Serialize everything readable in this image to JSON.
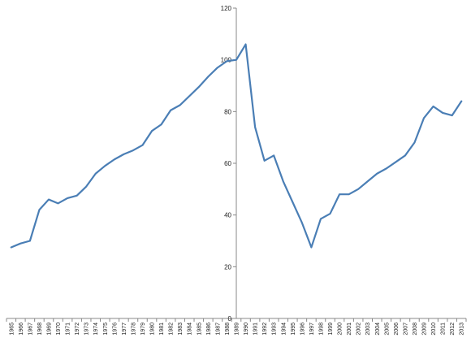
{
  "chart_data": {
    "type": "line",
    "title": "",
    "xlabel": "",
    "ylabel": "",
    "ylim": [
      0,
      120
    ],
    "yticks": [
      "0",
      "20",
      "40",
      "60",
      "80",
      "100",
      "120"
    ],
    "grid": false,
    "legend": "none",
    "line_color": "#4a7eb5",
    "categories": [
      "1965",
      "1966",
      "1967",
      "1968",
      "1969",
      "1970",
      "1971",
      "1972",
      "1973",
      "1974",
      "1975",
      "1976",
      "1977",
      "1978",
      "1979",
      "1980",
      "1981",
      "1982",
      "1983",
      "1984",
      "1985",
      "1986",
      "1987",
      "1988",
      "1989",
      "1990",
      "1991",
      "1992",
      "1993",
      "1994",
      "1995",
      "1996",
      "1997",
      "1998",
      "1999",
      "2000",
      "2001",
      "2002",
      "2003",
      "2004",
      "2005",
      "2006",
      "2007",
      "2008",
      "2009",
      "2010",
      "2011",
      "2012",
      "2013"
    ],
    "series": [
      {
        "values": [
          27.5,
          29,
          30,
          42,
          46,
          44.5,
          46.5,
          47.5,
          51,
          56,
          59,
          61.5,
          63.5,
          65,
          67,
          72.5,
          75,
          80.5,
          82.5,
          86,
          89.5,
          93.5,
          97,
          99.5,
          100,
          106,
          74,
          61,
          63,
          53,
          45,
          37,
          27.5,
          38.5,
          40.5,
          48,
          48,
          50,
          53,
          56,
          58,
          60.5,
          63,
          68,
          77.5,
          82,
          79.5,
          78.5,
          84
        ]
      }
    ]
  }
}
